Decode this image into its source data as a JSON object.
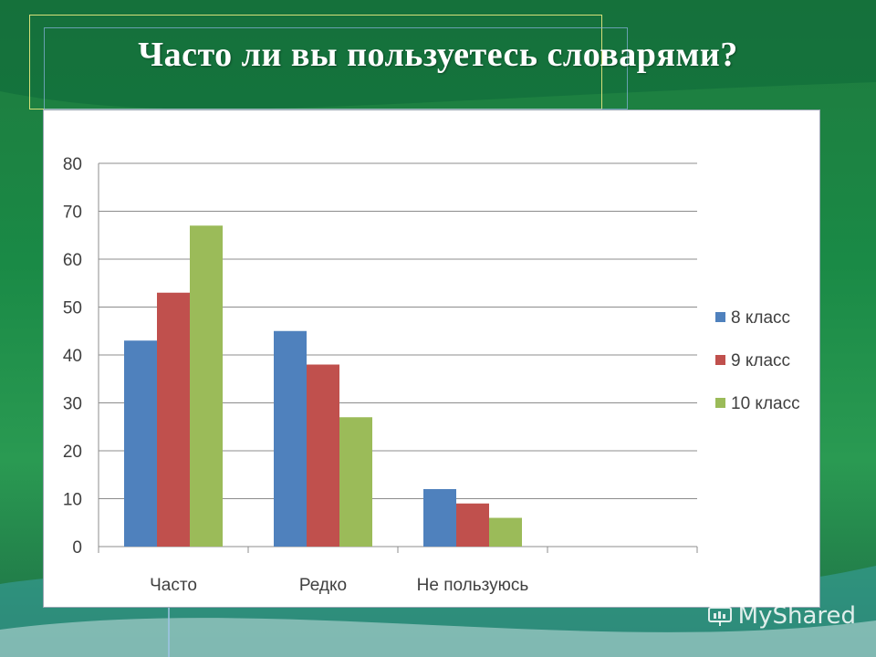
{
  "slide": {
    "title": "Часто ли вы пользуетесь словарями?",
    "watermark_text": "MyShared"
  },
  "colors": {
    "series_8": "#4f81bd",
    "series_9": "#c0504d",
    "series_10": "#9bbb59",
    "grid": "#8c8c8c",
    "axis_text": "#404040"
  },
  "chart_data": {
    "type": "bar",
    "categories": [
      "Часто",
      "Редко",
      "Не пользуюсь",
      ""
    ],
    "series": [
      {
        "name": "8 класс",
        "values": [
          43,
          45,
          12,
          null
        ]
      },
      {
        "name": "9 класс",
        "values": [
          53,
          38,
          9,
          null
        ]
      },
      {
        "name": "10 класс",
        "values": [
          67,
          27,
          6,
          null
        ]
      }
    ],
    "yticks": [
      "0",
      "10",
      "20",
      "30",
      "40",
      "50",
      "60",
      "70",
      "80"
    ],
    "ylim": [
      0,
      80
    ],
    "grid": true,
    "legend_position": "right"
  }
}
